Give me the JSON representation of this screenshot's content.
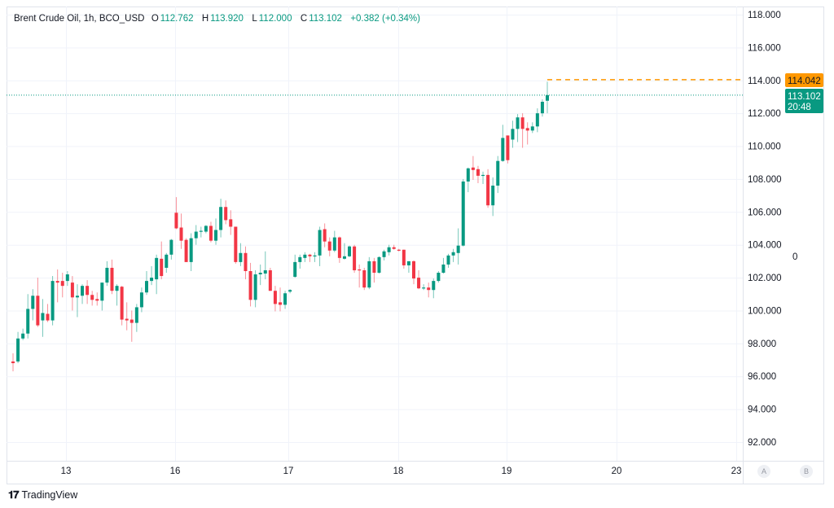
{
  "legend": {
    "symbol": "Brent Crude Oil, 1h, BCO_USD",
    "open_label": "O",
    "open": "112.762",
    "high_label": "H",
    "high": "113.920",
    "low_label": "L",
    "low": "112.000",
    "close_label": "C",
    "close": "113.102",
    "change": "+0.382 (+0.34%)"
  },
  "price_labels": {
    "alert_price": "114.042",
    "last_price": "113.102",
    "countdown": "20:48",
    "secondary_scale_value": "0"
  },
  "buttons": {
    "a": "A",
    "b": "B"
  },
  "brand": {
    "logo": "TV",
    "name": "TradingView"
  },
  "colors": {
    "up": "#089981",
    "down": "#f23645",
    "alert_line": "#ff9800",
    "last_price_line": "#089981",
    "grid": "#f0f3fa"
  },
  "chart_data": {
    "type": "candlestick",
    "title": "Brent Crude Oil, 1h, BCO_USD",
    "interval": "1h",
    "ylim": [
      91.5,
      118.5
    ],
    "y_axis_position": "right",
    "grid": true,
    "yticks": [
      "118.000",
      "116.000",
      "114.000",
      "112.000",
      "110.000",
      "108.000",
      "106.000",
      "104.000",
      "102.000",
      "100.000",
      "98.000",
      "96.000",
      "94.000",
      "92.000"
    ],
    "xticks": [
      "13",
      "16",
      "17",
      "18",
      "19",
      "20",
      "23"
    ],
    "alert_level": 114.042,
    "last_price": 113.102,
    "ohlc": [
      [
        96.9,
        97.4,
        96.3,
        96.8
      ],
      [
        96.9,
        98.7,
        96.8,
        98.3
      ],
      [
        98.3,
        98.9,
        98.2,
        98.6
      ],
      [
        98.6,
        101.0,
        98.3,
        100.1
      ],
      [
        100.1,
        101.3,
        99.4,
        100.9
      ],
      [
        100.9,
        102.0,
        99.0,
        99.1
      ],
      [
        99.4,
        100.7,
        98.4,
        99.85
      ],
      [
        99.8,
        100.4,
        99.3,
        99.4
      ],
      [
        99.4,
        102.1,
        99.1,
        101.8
      ],
      [
        101.8,
        102.5,
        100.5,
        101.7
      ],
      [
        101.8,
        102.3,
        100.8,
        101.5
      ],
      [
        101.8,
        102.4,
        101.5,
        102.2
      ],
      [
        101.7,
        102.1,
        100.0,
        100.8
      ],
      [
        100.8,
        101.6,
        99.6,
        100.9
      ],
      [
        100.9,
        101.6,
        100.4,
        101.5
      ],
      [
        101.5,
        101.85,
        100.4,
        100.95
      ],
      [
        100.95,
        101.2,
        100.3,
        100.65
      ],
      [
        100.7,
        101.1,
        100.3,
        100.6
      ],
      [
        100.6,
        101.7,
        100.0,
        101.7
      ],
      [
        101.7,
        103.0,
        101.5,
        102.6
      ],
      [
        102.6,
        103.1,
        101.0,
        101.2
      ],
      [
        101.2,
        101.6,
        100.3,
        101.5
      ],
      [
        101.45,
        101.5,
        99.1,
        99.45
      ],
      [
        99.5,
        100.5,
        98.8,
        99.4
      ],
      [
        99.45,
        100.0,
        98.1,
        99.25
      ],
      [
        99.25,
        100.4,
        98.7,
        100.2
      ],
      [
        100.2,
        101.4,
        99.9,
        101.1
      ],
      [
        101.1,
        102.4,
        100.95,
        101.8
      ],
      [
        101.8,
        102.7,
        101.55,
        102.0
      ],
      [
        101.9,
        103.4,
        101.0,
        103.2
      ],
      [
        103.15,
        104.2,
        101.9,
        102.1
      ],
      [
        102.6,
        103.5,
        102.3,
        103.4
      ],
      [
        103.4,
        104.35,
        103.1,
        104.3
      ],
      [
        105.95,
        106.9,
        104.95,
        105.0
      ],
      [
        105.05,
        105.9,
        103.75,
        104.25
      ],
      [
        104.3,
        104.4,
        102.95,
        102.95
      ],
      [
        102.95,
        104.7,
        102.4,
        104.4
      ],
      [
        104.4,
        105.2,
        104.0,
        104.8
      ],
      [
        104.8,
        105.1,
        104.45,
        104.85
      ],
      [
        104.8,
        105.2,
        104.7,
        105.15
      ],
      [
        105.15,
        105.4,
        104.15,
        104.25
      ],
      [
        104.25,
        105.6,
        104.0,
        104.9
      ],
      [
        104.9,
        106.8,
        104.45,
        106.3
      ],
      [
        106.3,
        106.7,
        105.25,
        105.5
      ],
      [
        105.55,
        106.1,
        104.6,
        105.1
      ],
      [
        105.1,
        105.1,
        102.85,
        102.95
      ],
      [
        102.95,
        104.1,
        102.7,
        103.5
      ],
      [
        103.5,
        103.9,
        101.9,
        102.4
      ],
      [
        102.4,
        102.9,
        100.25,
        100.65
      ],
      [
        100.65,
        102.45,
        100.2,
        102.2
      ],
      [
        102.2,
        102.8,
        101.55,
        102.3
      ],
      [
        102.25,
        103.6,
        101.9,
        102.45
      ],
      [
        102.45,
        102.6,
        101.2,
        101.2
      ],
      [
        101.2,
        101.5,
        99.95,
        100.4
      ],
      [
        100.5,
        101.4,
        99.95,
        100.35
      ],
      [
        100.35,
        101.2,
        100.1,
        101.05
      ],
      [
        101.15,
        101.3,
        101.05,
        101.25
      ],
      [
        102.05,
        103.4,
        102.0,
        102.95
      ],
      [
        102.95,
        103.4,
        102.55,
        103.25
      ],
      [
        103.2,
        103.55,
        102.95,
        103.4
      ],
      [
        103.4,
        103.45,
        102.95,
        103.3
      ],
      [
        103.3,
        103.55,
        102.95,
        103.35
      ],
      [
        103.35,
        105.1,
        102.7,
        104.9
      ],
      [
        104.95,
        105.3,
        103.85,
        104.2
      ],
      [
        104.2,
        104.45,
        103.3,
        103.65
      ],
      [
        103.65,
        104.85,
        103.55,
        104.45
      ],
      [
        104.45,
        104.5,
        102.9,
        103.2
      ],
      [
        103.15,
        104.1,
        103.1,
        103.3
      ],
      [
        103.3,
        103.95,
        103.25,
        103.9
      ],
      [
        103.9,
        104.0,
        102.3,
        102.45
      ],
      [
        102.5,
        102.8,
        101.4,
        102.45
      ],
      [
        102.45,
        102.6,
        101.25,
        101.4
      ],
      [
        101.4,
        103.25,
        101.3,
        103.0
      ],
      [
        103.0,
        103.2,
        101.7,
        102.3
      ],
      [
        102.3,
        103.3,
        102.25,
        103.25
      ],
      [
        103.25,
        103.7,
        103.05,
        103.6
      ],
      [
        103.55,
        104.0,
        103.35,
        103.85
      ],
      [
        103.85,
        104.0,
        103.7,
        103.75
      ],
      [
        103.7,
        103.75,
        103.6,
        103.65
      ],
      [
        103.7,
        103.7,
        102.55,
        102.75
      ],
      [
        102.75,
        103.0,
        102.3,
        103.0
      ],
      [
        103.0,
        103.05,
        101.6,
        101.95
      ],
      [
        102.0,
        102.45,
        101.3,
        101.35
      ],
      [
        101.35,
        101.6,
        101.25,
        101.4
      ],
      [
        101.4,
        101.7,
        100.8,
        101.25
      ],
      [
        101.25,
        101.95,
        100.75,
        101.8
      ],
      [
        101.8,
        102.4,
        101.7,
        102.3
      ],
      [
        102.3,
        103.2,
        102.25,
        102.8
      ],
      [
        102.8,
        103.45,
        102.6,
        103.35
      ],
      [
        103.35,
        103.75,
        102.95,
        103.55
      ],
      [
        103.5,
        105.0,
        102.8,
        103.95
      ],
      [
        103.95,
        108.0,
        103.9,
        107.85
      ],
      [
        107.85,
        108.7,
        107.2,
        108.65
      ],
      [
        108.7,
        109.4,
        107.95,
        108.55
      ],
      [
        108.6,
        108.8,
        107.75,
        108.2
      ],
      [
        108.2,
        108.45,
        107.7,
        108.25
      ],
      [
        108.25,
        108.6,
        106.25,
        106.4
      ],
      [
        106.4,
        108.1,
        105.75,
        107.6
      ],
      [
        107.6,
        109.4,
        107.15,
        109.1
      ],
      [
        109.1,
        111.3,
        109.05,
        110.5
      ],
      [
        110.65,
        110.65,
        108.95,
        109.15
      ],
      [
        110.4,
        111.55,
        109.9,
        111.05
      ],
      [
        111.05,
        111.95,
        110.25,
        111.75
      ],
      [
        111.75,
        112.0,
        109.9,
        111.05
      ],
      [
        111.1,
        111.45,
        110.1,
        110.95
      ],
      [
        110.95,
        111.45,
        110.8,
        111.2
      ],
      [
        111.2,
        112.3,
        110.85,
        112.0
      ],
      [
        112.0,
        112.85,
        111.8,
        112.7
      ],
      [
        112.762,
        113.92,
        112.0,
        113.102
      ]
    ]
  }
}
